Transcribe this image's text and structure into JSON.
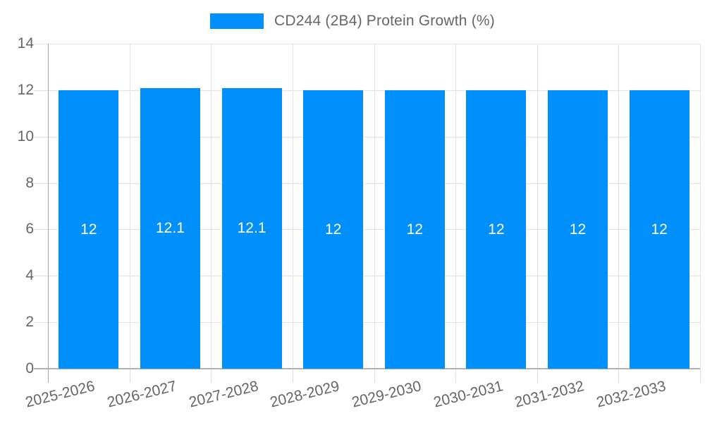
{
  "legend": {
    "label": "CD244 (2B4) Protein Growth (%)"
  },
  "chart_data": {
    "type": "bar",
    "title": "CD244 (2B4) Protein Growth (%)",
    "categories": [
      "2025-2026",
      "2026-2027",
      "2027-2028",
      "2028-2029",
      "2029-2030",
      "2030-2031",
      "2031-2032",
      "2032-2033"
    ],
    "series": [
      {
        "name": "CD244 (2B4) Protein Growth (%)",
        "values": [
          12,
          12.1,
          12.1,
          12,
          12,
          12,
          12,
          12
        ]
      }
    ],
    "value_labels": [
      "12",
      "12.1",
      "12.1",
      "12",
      "12",
      "12",
      "12",
      "12"
    ],
    "y_ticks": [
      0,
      2,
      4,
      6,
      8,
      10,
      12,
      14
    ],
    "ylim": [
      0,
      14
    ],
    "xlabel": "",
    "ylabel": "",
    "grid": true,
    "legend_position": "top-center",
    "x_label_rotation_deg": -14,
    "colors": {
      "bar": "#008FFB",
      "value_label": "#FFFFFF",
      "axis_text": "#666666",
      "gridline": "#E3E3E3",
      "axis_line": "#A9A9A9"
    }
  }
}
